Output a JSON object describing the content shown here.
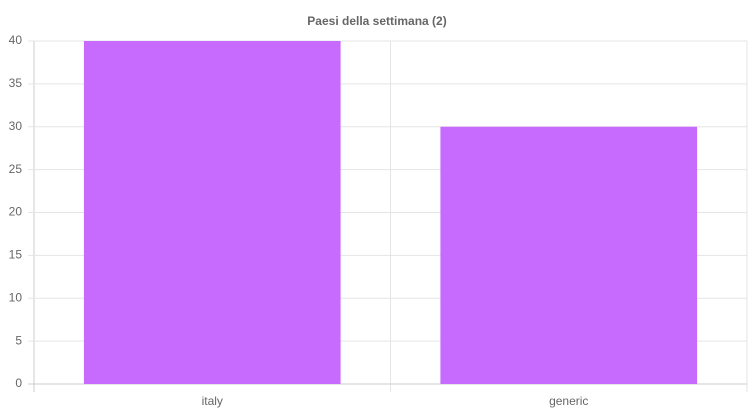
{
  "chart_data": {
    "type": "bar",
    "title": "Paesi della settimana (2)",
    "categories": [
      "italy",
      "generic"
    ],
    "values": [
      40,
      30
    ],
    "color": "#c76bff",
    "ylim": [
      0,
      40
    ],
    "yticks": [
      0,
      5,
      10,
      15,
      20,
      25,
      30,
      35,
      40
    ],
    "grid": true
  }
}
